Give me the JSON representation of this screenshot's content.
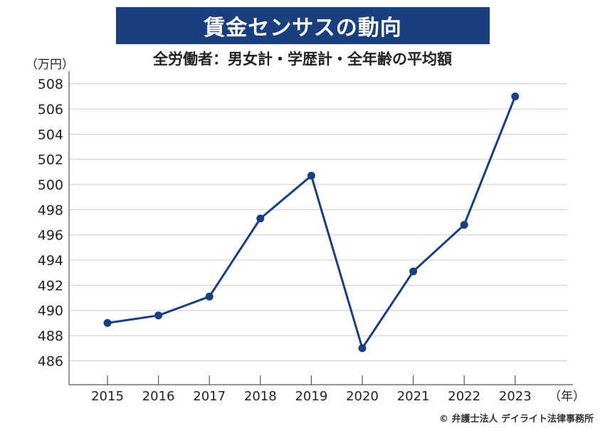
{
  "title": "賃金センサスの動向",
  "subtitle": "全労働者：男女計・学歴計・全年齢の平均額",
  "credit": "© 弁護士法人 デイライト法律事務所",
  "colors": {
    "accent": "#1a3f7f",
    "line": "#1a3f7f",
    "grid": "#cccccc",
    "axis": "#555555"
  },
  "chart_data": {
    "type": "line",
    "ylabel": "（万円）",
    "xlabel": "（年）",
    "x": [
      "2015",
      "2016",
      "2017",
      "2018",
      "2019",
      "2020",
      "2021",
      "2022",
      "2023"
    ],
    "yticks": [
      486,
      488,
      490,
      492,
      494,
      496,
      498,
      500,
      502,
      504,
      506,
      508
    ],
    "ylim": [
      484.1,
      509.0
    ],
    "grid": true,
    "series": [
      {
        "values": [
          489.0,
          489.6,
          491.1,
          497.3,
          500.7,
          487.0,
          493.1,
          496.8,
          507.0
        ]
      }
    ]
  }
}
